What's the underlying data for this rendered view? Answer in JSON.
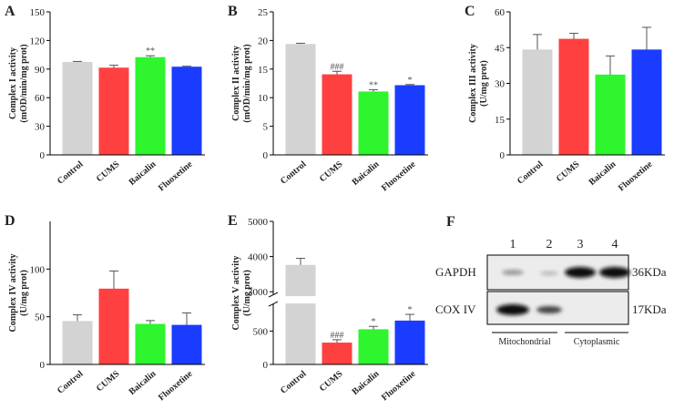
{
  "chart_data": [
    {
      "type": "bar",
      "panel": "A",
      "ylabel": [
        "Complex I activity",
        "(mOD/min/mg prot)"
      ],
      "categories": [
        "Control",
        "CUMS",
        "Baicalin",
        "Fluoxetine"
      ],
      "values": [
        97,
        91,
        102,
        92
      ],
      "errors": [
        1,
        3,
        2,
        1
      ],
      "colors": [
        "#d3d3d3",
        "#ff4040",
        "#2ef52e",
        "#1a3cff"
      ],
      "annotations": [
        null,
        null,
        "**",
        null
      ],
      "ylim": [
        0,
        150
      ],
      "yticks": [
        0,
        30,
        60,
        90,
        120,
        150
      ]
    },
    {
      "type": "bar",
      "panel": "B",
      "ylabel": [
        "Complex II activity",
        "(mOD/min/mg prot)"
      ],
      "categories": [
        "Control",
        "CUMS",
        "Baicalin",
        "Fluoxetine"
      ],
      "values": [
        19.3,
        14.0,
        11.0,
        12.1
      ],
      "errors": [
        0.2,
        0.6,
        0.4,
        0.2
      ],
      "colors": [
        "#d3d3d3",
        "#ff4040",
        "#2ef52e",
        "#1a3cff"
      ],
      "annotations": [
        null,
        "###",
        "**",
        "*"
      ],
      "ylim": [
        0,
        25
      ],
      "yticks": [
        0,
        5,
        10,
        15,
        20,
        25
      ]
    },
    {
      "type": "bar",
      "panel": "C",
      "ylabel": [
        "Complex III activity",
        "(U/mg prot)"
      ],
      "categories": [
        "Control",
        "CUMS",
        "Baicalin",
        "Fluoxetine"
      ],
      "values": [
        44,
        48.5,
        33.5,
        44
      ],
      "errors": [
        6.5,
        2.5,
        8,
        9.5
      ],
      "colors": [
        "#d3d3d3",
        "#ff4040",
        "#2ef52e",
        "#1a3cff"
      ],
      "annotations": [
        null,
        null,
        null,
        null
      ],
      "ylim": [
        0,
        60
      ],
      "yticks": [
        0,
        15,
        30,
        45,
        60
      ]
    },
    {
      "type": "bar",
      "panel": "D",
      "ylabel": [
        "Complex IV activity",
        "(U/mg prot)"
      ],
      "categories": [
        "Control",
        "CUMS",
        "Baicalin",
        "Fluoxetine"
      ],
      "values": [
        45,
        79,
        42,
        41
      ],
      "errors": [
        7,
        19,
        4,
        13
      ],
      "colors": [
        "#d3d3d3",
        "#ff4040",
        "#2ef52e",
        "#1a3cff"
      ],
      "annotations": [
        null,
        null,
        null,
        null
      ],
      "ylim": [
        0,
        150
      ],
      "yticks": [
        0,
        50,
        100
      ]
    },
    {
      "type": "bar",
      "panel": "E",
      "ylabel": [
        "Complex V activity",
        "(U/mg prot)"
      ],
      "categories": [
        "Control",
        "CUMS",
        "Baicalin",
        "Fluoxetine"
      ],
      "values": [
        3750,
        320,
        520,
        650
      ],
      "errors": [
        200,
        50,
        50,
        100
      ],
      "colors": [
        "#d3d3d3",
        "#ff4040",
        "#2ef52e",
        "#1a3cff"
      ],
      "annotations": [
        null,
        "###",
        "*",
        "*"
      ],
      "ylim": [
        0,
        5000
      ],
      "ybreak": [
        900,
        2900
      ],
      "yticks": [
        0,
        500,
        3000,
        4000,
        5000
      ]
    }
  ],
  "blot": {
    "panel": "F",
    "lanes": [
      "1",
      "2",
      "3",
      "4"
    ],
    "rows": [
      {
        "label": "GAPDH",
        "size": "36KDa"
      },
      {
        "label": "COX IV",
        "size": "17KDa"
      }
    ],
    "groups": [
      "Mitochondrial",
      "Cytoplasmic"
    ]
  }
}
